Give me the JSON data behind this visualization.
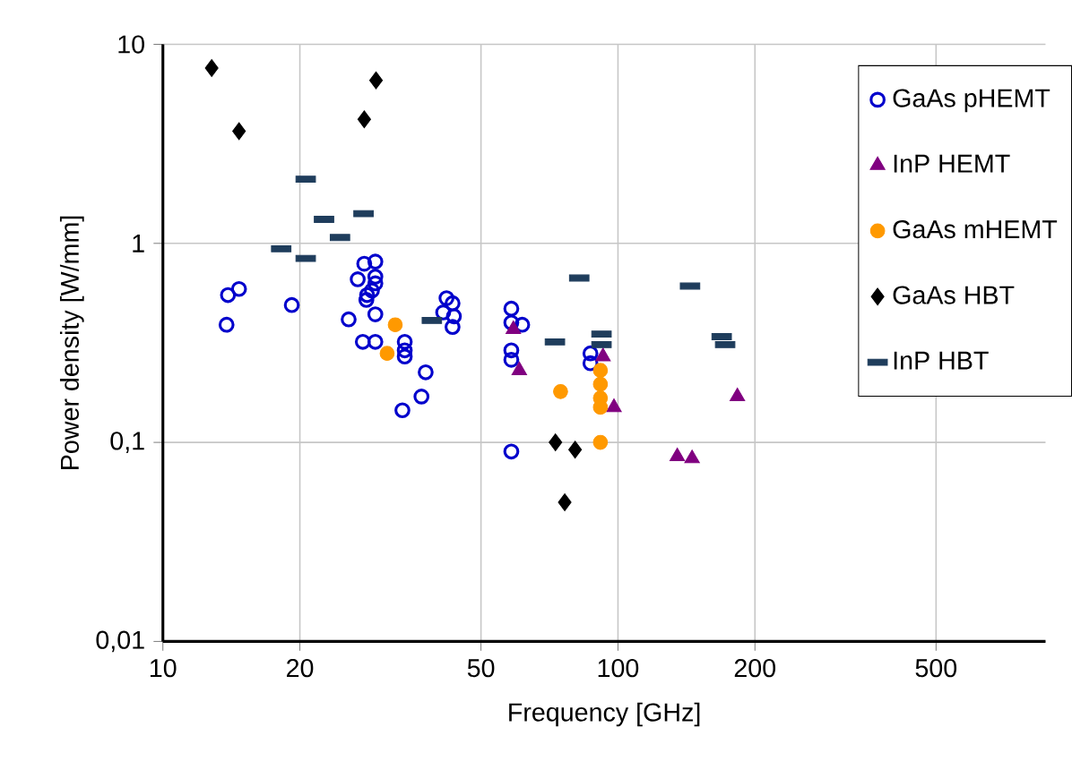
{
  "chart_data": {
    "type": "scatter",
    "xlabel": "Frequency [GHz]",
    "ylabel": "Power density [W/mm]",
    "log": "xy",
    "grid": true,
    "legend": "top right",
    "xlim": [
      10,
      870
    ],
    "ylim": [
      0.01,
      10
    ],
    "xticks": [
      10,
      20,
      50,
      100,
      200,
      500
    ],
    "yticks": [
      {
        "value": 0.01,
        "label": "0,01"
      },
      {
        "value": 0.1,
        "label": "0,1"
      },
      1,
      10
    ],
    "series": [
      {
        "name": "GaAs pHEMT",
        "color": "#0000cc",
        "marker": "circle-open",
        "x": [
          13.9,
          14.7,
          13.8,
          19.2,
          25.6,
          27.7,
          29.3,
          26.8,
          29.3,
          29.3,
          28.8,
          28.1,
          28.0,
          29.3,
          27.5,
          29.3,
          34,
          34,
          34,
          37.8,
          37,
          33.6,
          42,
          43.3,
          41.3,
          43.6,
          43.3,
          58.3,
          58.3,
          61.6,
          58.3,
          58.3,
          58.3,
          87,
          87
        ],
        "values": [
          0.55,
          0.59,
          0.39,
          0.49,
          0.415,
          0.79,
          0.81,
          0.66,
          0.68,
          0.63,
          0.58,
          0.55,
          0.52,
          0.44,
          0.32,
          0.32,
          0.32,
          0.29,
          0.27,
          0.225,
          0.17,
          0.145,
          0.53,
          0.5,
          0.45,
          0.43,
          0.38,
          0.47,
          0.4,
          0.39,
          0.29,
          0.26,
          0.09,
          0.28,
          0.25
        ]
      },
      {
        "name": "InP HEMT",
        "color": "#800080",
        "marker": "triangle",
        "x": [
          58.9,
          60.7,
          92.7,
          98,
          183,
          135,
          145.5
        ],
        "values": [
          0.37,
          0.23,
          0.27,
          0.15,
          0.17,
          0.085,
          0.083
        ]
      },
      {
        "name": "GaAs mHEMT",
        "color": "#ff9900",
        "marker": "circle",
        "x": [
          32.4,
          31.1,
          74.8,
          91.5,
          91.5,
          91.5,
          91.5,
          91.5
        ],
        "values": [
          0.39,
          0.28,
          0.18,
          0.23,
          0.196,
          0.167,
          0.15,
          0.1
        ]
      },
      {
        "name": "GaAs HBT",
        "color": "#000000",
        "marker": "diamond",
        "x": [
          12.8,
          14.7,
          27.7,
          29.4,
          72.9,
          80.5,
          76.4
        ],
        "values": [
          7.6,
          3.66,
          4.2,
          6.6,
          0.1,
          0.092,
          0.05
        ]
      },
      {
        "name": "InP HBT",
        "color": "#1f3d5c",
        "marker": "square",
        "x": [
          20.6,
          22.6,
          27.6,
          24.5,
          18.2,
          20.6,
          39,
          82.2,
          144,
          92,
          92,
          72.7,
          169,
          172
        ],
        "values": [
          2.1,
          1.32,
          1.41,
          1.07,
          0.94,
          0.84,
          0.41,
          0.67,
          0.61,
          0.35,
          0.31,
          0.32,
          0.34,
          0.31
        ]
      }
    ]
  }
}
